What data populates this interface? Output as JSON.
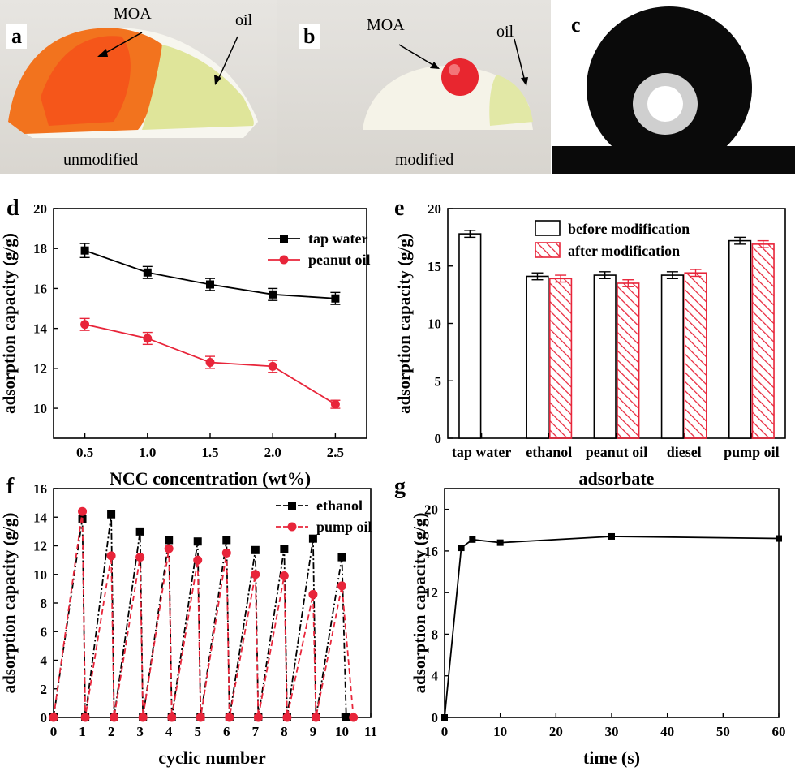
{
  "panels": {
    "a": {
      "letter": "a",
      "moa": "MOA",
      "oil": "oil",
      "caption": "unmodified"
    },
    "b": {
      "letter": "b",
      "moa": "MOA",
      "oil": "oil",
      "caption": "modified"
    },
    "c": {
      "letter": "c"
    }
  },
  "chart_data": [
    {
      "id": "d",
      "letter": "d",
      "type": "line",
      "xlabel": "NCC concentration (wt%)",
      "ylabel": "adsorption capacity (g/g)",
      "x": [
        0.5,
        1.0,
        1.5,
        2.0,
        2.5
      ],
      "xticks": [
        "0.5",
        "1.0",
        "1.5",
        "2.0",
        "2.5"
      ],
      "ylim": [
        8.5,
        20
      ],
      "yticks": [
        10,
        12,
        14,
        16,
        18,
        20
      ],
      "series": [
        {
          "name": "tap water",
          "color": "#000000",
          "marker": "square",
          "values": [
            17.9,
            16.8,
            16.2,
            15.7,
            15.5
          ],
          "err": [
            0.35,
            0.3,
            0.3,
            0.3,
            0.3
          ]
        },
        {
          "name": "peanut oil",
          "color": "#e8253a",
          "marker": "circle",
          "values": [
            14.2,
            13.5,
            12.3,
            12.1,
            10.2
          ],
          "err": [
            0.3,
            0.3,
            0.3,
            0.3,
            0.2
          ]
        }
      ],
      "legend": "top-right"
    },
    {
      "id": "e",
      "letter": "e",
      "type": "bar",
      "xlabel": "adsorbate",
      "ylabel": "adsorption capacity (g/g)",
      "categories": [
        "tap water",
        "ethanol",
        "peanut oil",
        "diesel",
        "pump oil"
      ],
      "ylim": [
        0,
        20
      ],
      "yticks": [
        0,
        5,
        10,
        15,
        20
      ],
      "series": [
        {
          "name": "before modification",
          "color": "#000000",
          "values": [
            17.8,
            14.1,
            14.2,
            14.2,
            17.2
          ],
          "err": [
            0.3,
            0.3,
            0.3,
            0.3,
            0.3
          ]
        },
        {
          "name": "after modification",
          "color": "#e8253a",
          "values": [
            null,
            13.9,
            13.5,
            14.4,
            16.9
          ],
          "err": [
            null,
            0.3,
            0.3,
            0.3,
            0.3
          ]
        }
      ],
      "legend": "top-right"
    },
    {
      "id": "f",
      "letter": "f",
      "type": "line",
      "xlabel": "cyclic number",
      "ylabel": "adsorption capacity (g/g)",
      "xlim": [
        0,
        11
      ],
      "ylim": [
        0,
        16
      ],
      "xticks": [
        0,
        1,
        2,
        3,
        4,
        5,
        6,
        7,
        8,
        9,
        10,
        11
      ],
      "yticks": [
        0,
        2,
        4,
        6,
        8,
        10,
        12,
        14,
        16
      ],
      "series": [
        {
          "name": "ethanol",
          "color": "#000000",
          "marker": "square",
          "x": [
            0,
            1,
            1.1,
            2,
            2.1,
            3,
            3.1,
            4,
            4.1,
            5,
            5.1,
            6,
            6.1,
            7,
            7.1,
            8,
            8.1,
            9,
            9.1,
            10,
            10.15
          ],
          "values": [
            0,
            13.9,
            0,
            14.2,
            0,
            13.0,
            0,
            12.4,
            0,
            12.3,
            0,
            12.4,
            0,
            11.7,
            0,
            11.8,
            0,
            12.5,
            0,
            11.2,
            0
          ]
        },
        {
          "name": "pump oil",
          "color": "#e8253a",
          "marker": "circle",
          "x": [
            0,
            1,
            1.1,
            2,
            2.1,
            3,
            3.1,
            4,
            4.1,
            5,
            5.1,
            6,
            6.1,
            7,
            7.1,
            8,
            8.1,
            9,
            9.1,
            10,
            10.4
          ],
          "values": [
            0,
            14.4,
            0,
            11.3,
            0,
            11.2,
            0,
            11.8,
            0,
            11.0,
            0,
            11.5,
            0,
            10.0,
            0,
            9.9,
            0,
            8.6,
            0,
            9.2,
            0
          ]
        }
      ],
      "legend": "top-right"
    },
    {
      "id": "g",
      "letter": "g",
      "type": "line",
      "xlabel": "time (s)",
      "ylabel": "adsorption capacity (g/g)",
      "xlim": [
        0,
        60
      ],
      "ylim": [
        0,
        22
      ],
      "xticks": [
        0,
        10,
        20,
        30,
        40,
        50,
        60
      ],
      "yticks": [
        0,
        4,
        8,
        12,
        16,
        20
      ],
      "series": [
        {
          "name": "",
          "color": "#000000",
          "marker": "square",
          "x": [
            0,
            3,
            5,
            10,
            30,
            60
          ],
          "values": [
            0,
            16.3,
            17.1,
            16.8,
            17.4,
            17.2
          ]
        }
      ]
    }
  ]
}
